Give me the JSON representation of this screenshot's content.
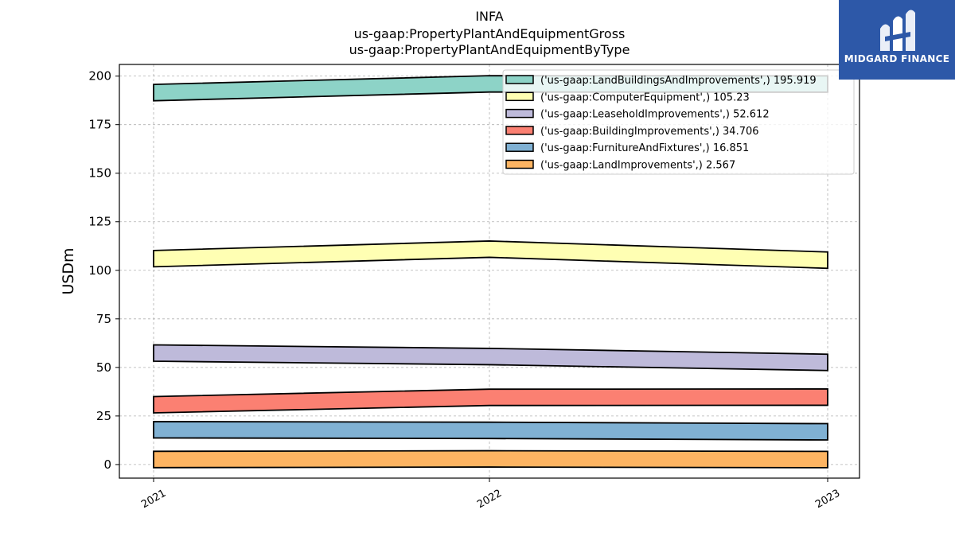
{
  "title_lines": [
    "INFA",
    "us-gaap:PropertyPlantAndEquipmentGross",
    "us-gaap:PropertyPlantAndEquipmentByType"
  ],
  "logo": {
    "text": "MIDGARD FINANCE",
    "bg": "#2d58a8",
    "icon": "midgard-logo-icon"
  },
  "chart_data": {
    "type": "area",
    "title": "INFA\nus-gaap:PropertyPlantAndEquipmentGross\nus-gaap:PropertyPlantAndEquipmentByType",
    "xlabel": "",
    "ylabel": "USDm",
    "categories": [
      "2021",
      "2022",
      "2023"
    ],
    "ylim": [
      -7,
      206
    ],
    "yticks": [
      0,
      25,
      50,
      75,
      100,
      125,
      150,
      175,
      200
    ],
    "grid": true,
    "legend_position": "top-right",
    "series": [
      {
        "name": "('us-gaap:LandBuildingsAndImprovements',) 195.919",
        "color": "#8dd3c7",
        "values": [
          191.5,
          196.0,
          195.9
        ]
      },
      {
        "name": "('us-gaap:ComputerEquipment',) 105.23",
        "color": "#ffffb3",
        "values": [
          106.0,
          110.9,
          105.23
        ]
      },
      {
        "name": "('us-gaap:LeaseholdImprovements',) 52.612",
        "color": "#bebada",
        "values": [
          57.4,
          55.6,
          52.612
        ]
      },
      {
        "name": "('us-gaap:BuildingImprovements',) 34.706",
        "color": "#fb8072",
        "values": [
          30.8,
          34.6,
          34.706
        ]
      },
      {
        "name": "('us-gaap:FurnitureAndFixtures',) 16.851",
        "color": "#80b1d3",
        "values": [
          17.9,
          17.6,
          16.851
        ]
      },
      {
        "name": "('us-gaap:LandImprovements',) 2.567",
        "color": "#fdb462",
        "values": [
          2.6,
          2.9,
          2.567
        ]
      }
    ]
  }
}
